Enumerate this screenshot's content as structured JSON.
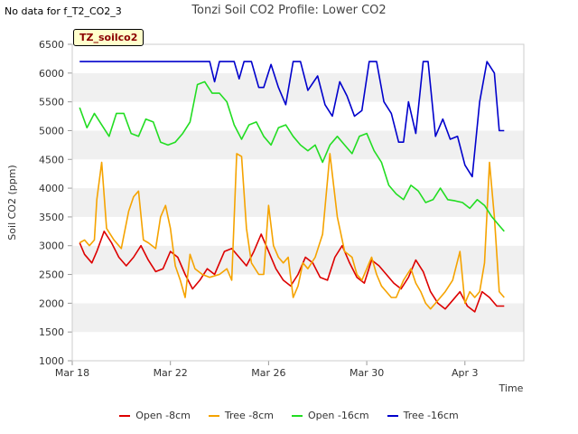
{
  "no_data_text": "No data for f_T2_CO2_3",
  "badge": "TZ_soilco2",
  "colors": {
    "open8": "#dd0000",
    "tree8": "#f5a300",
    "open16": "#22dd22",
    "tree16": "#0000cc"
  },
  "chart_data": {
    "type": "line",
    "title": "Tonzi Soil CO2 Profile: Lower CO2",
    "xlabel": "Time",
    "ylabel": "Soil CO2 (ppm)",
    "ylim": [
      1000,
      6500
    ],
    "yticks": [
      1000,
      1500,
      2000,
      2500,
      3000,
      3500,
      4000,
      4500,
      5000,
      5500,
      6000,
      6500
    ],
    "xticks": [
      {
        "label": "Mar 18",
        "day": 0
      },
      {
        "label": "Mar 22",
        "day": 4
      },
      {
        "label": "Mar 26",
        "day": 8
      },
      {
        "label": "Mar 30",
        "day": 12
      },
      {
        "label": "Apr 3",
        "day": 16
      }
    ],
    "xlim": [
      0,
      18.4
    ],
    "grid": "horizontal bands",
    "legend_position": "bottom",
    "series": [
      {
        "name": "Open -8cm",
        "color": "#dd0000",
        "x": [
          0.3,
          0.5,
          0.8,
          1.0,
          1.3,
          1.6,
          1.9,
          2.2,
          2.5,
          2.8,
          3.1,
          3.4,
          3.7,
          4.0,
          4.3,
          4.6,
          4.9,
          5.2,
          5.5,
          5.8,
          6.2,
          6.5,
          6.8,
          7.1,
          7.4,
          7.7,
          8.0,
          8.3,
          8.6,
          8.9,
          9.2,
          9.5,
          9.8,
          10.1,
          10.4,
          10.7,
          11.0,
          11.3,
          11.6,
          11.9,
          12.2,
          12.5,
          12.8,
          13.1,
          13.4,
          13.7,
          14.0,
          14.3,
          14.6,
          14.9,
          15.2,
          15.5,
          15.8,
          16.1,
          16.4,
          16.7,
          17.0,
          17.3,
          17.6
        ],
        "y": [
          3050,
          2850,
          2700,
          2900,
          3250,
          3050,
          2800,
          2650,
          2800,
          3000,
          2750,
          2550,
          2600,
          2900,
          2800,
          2500,
          2250,
          2400,
          2600,
          2500,
          2900,
          2950,
          2800,
          2650,
          2900,
          3200,
          2900,
          2600,
          2400,
          2300,
          2500,
          2800,
          2700,
          2450,
          2400,
          2800,
          3000,
          2700,
          2450,
          2350,
          2750,
          2650,
          2500,
          2350,
          2250,
          2450,
          2750,
          2550,
          2200,
          2000,
          1900,
          2050,
          2200,
          1950,
          1850,
          2200,
          2100,
          1950,
          1950
        ],
        "y2": null
      },
      {
        "name": "Tree -8cm",
        "color": "#f5a300",
        "x": [
          0.3,
          0.5,
          0.7,
          0.9,
          1.0,
          1.2,
          1.4,
          1.7,
          2.0,
          2.3,
          2.5,
          2.7,
          2.9,
          3.1,
          3.4,
          3.6,
          3.8,
          4.0,
          4.2,
          4.4,
          4.6,
          4.8,
          5.0,
          5.3,
          5.6,
          6.0,
          6.3,
          6.5,
          6.7,
          6.9,
          7.1,
          7.3,
          7.6,
          7.8,
          8.0,
          8.2,
          8.4,
          8.6,
          8.8,
          9.0,
          9.2,
          9.4,
          9.6,
          9.9,
          10.2,
          10.5,
          10.8,
          11.1,
          11.4,
          11.6,
          11.8,
          12.0,
          12.2,
          12.4,
          12.6,
          12.8,
          13.0,
          13.2,
          13.5,
          13.8,
          14.0,
          14.2,
          14.4,
          14.6,
          14.8,
          15.0,
          15.2,
          15.5,
          15.8,
          16.0,
          16.2,
          16.4,
          16.6,
          16.8,
          17.0,
          17.2,
          17.4,
          17.6
        ],
        "y": [
          3050,
          3100,
          3000,
          3100,
          3800,
          4450,
          3300,
          3100,
          2950,
          3600,
          3850,
          3950,
          3100,
          3050,
          2950,
          3500,
          3700,
          3300,
          2650,
          2400,
          2100,
          2850,
          2600,
          2500,
          2450,
          2500,
          2600,
          2400,
          4600,
          4550,
          3300,
          2700,
          2500,
          2500,
          3700,
          3000,
          2800,
          2700,
          2800,
          2100,
          2300,
          2700,
          2600,
          2800,
          3200,
          4600,
          3500,
          2900,
          2800,
          2500,
          2400,
          2600,
          2800,
          2500,
          2300,
          2200,
          2100,
          2100,
          2400,
          2600,
          2350,
          2200,
          2000,
          1900,
          2000,
          2100,
          2200,
          2400,
          2900,
          2000,
          2200,
          2100,
          2200,
          2700,
          4450,
          3500,
          2200,
          2100
        ],
        "y2": null
      },
      {
        "name": "Open -16cm",
        "color": "#22dd22",
        "x": [
          0.3,
          0.6,
          0.9,
          1.2,
          1.5,
          1.8,
          2.1,
          2.4,
          2.7,
          3.0,
          3.3,
          3.6,
          3.9,
          4.2,
          4.5,
          4.8,
          5.1,
          5.4,
          5.7,
          6.0,
          6.3,
          6.6,
          6.9,
          7.2,
          7.5,
          7.8,
          8.1,
          8.4,
          8.7,
          9.0,
          9.3,
          9.6,
          9.9,
          10.2,
          10.5,
          10.8,
          11.1,
          11.4,
          11.7,
          12.0,
          12.3,
          12.6,
          12.9,
          13.2,
          13.5,
          13.8,
          14.1,
          14.4,
          14.7,
          15.0,
          15.3,
          15.6,
          15.9,
          16.2,
          16.5,
          16.8,
          17.1,
          17.4,
          17.6
        ],
        "y": [
          5400,
          5050,
          5300,
          5100,
          4900,
          5300,
          5300,
          4950,
          4900,
          5200,
          5150,
          4800,
          4750,
          4800,
          4950,
          5150,
          5800,
          5850,
          5650,
          5650,
          5500,
          5100,
          4850,
          5100,
          5150,
          4900,
          4750,
          5050,
          5100,
          4900,
          4750,
          4650,
          4750,
          4450,
          4750,
          4900,
          4750,
          4600,
          4900,
          4950,
          4650,
          4450,
          4050,
          3900,
          3800,
          4050,
          3950,
          3750,
          3800,
          4000,
          3800,
          3780,
          3750,
          3650,
          3800,
          3700,
          3500,
          3350,
          3250
        ],
        "y2": null
      },
      {
        "name": "Tree -16cm",
        "color": "#0000cc",
        "x": [
          0.3,
          1.0,
          2.0,
          3.0,
          4.0,
          5.0,
          5.5,
          5.6,
          5.8,
          6.0,
          6.3,
          6.6,
          6.8,
          7.0,
          7.3,
          7.6,
          7.8,
          8.1,
          8.4,
          8.7,
          9.0,
          9.3,
          9.6,
          10.0,
          10.3,
          10.6,
          10.9,
          11.2,
          11.5,
          11.8,
          12.1,
          12.4,
          12.7,
          13.0,
          13.3,
          13.5,
          13.7,
          14.0,
          14.3,
          14.5,
          14.8,
          15.1,
          15.4,
          15.7,
          16.0,
          16.3,
          16.6,
          16.9,
          17.2,
          17.4,
          17.6
        ],
        "y": [
          6200,
          6200,
          6200,
          6200,
          6200,
          6200,
          6200,
          6200,
          5850,
          6200,
          6200,
          6200,
          5900,
          6200,
          6200,
          5750,
          5750,
          6150,
          5750,
          5450,
          6200,
          6200,
          5700,
          5950,
          5450,
          5250,
          5850,
          5600,
          5250,
          5350,
          6200,
          6200,
          5500,
          5300,
          4800,
          4800,
          5500,
          4950,
          6200,
          6200,
          4900,
          5200,
          4850,
          4900,
          4400,
          4200,
          5500,
          6200,
          6000,
          5000,
          5000
        ],
        "y2": null
      }
    ]
  }
}
